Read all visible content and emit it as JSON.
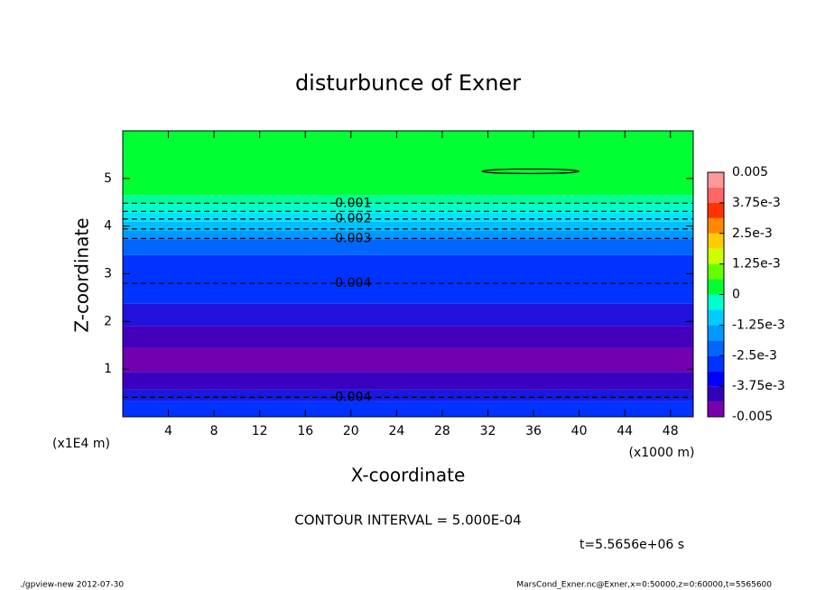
{
  "chart_data": {
    "type": "contour",
    "title": "disturbunce of Exner",
    "x_label": "X-coordinate",
    "y_label": "Z-coordinate",
    "x_unit": "(x1000 m)",
    "y_unit": "(x1E4 m)",
    "xlim": [
      0,
      50
    ],
    "ylim": [
      0,
      6
    ],
    "xticks": [
      4,
      8,
      12,
      16,
      20,
      24,
      28,
      32,
      36,
      40,
      44,
      48
    ],
    "yticks": [
      1,
      2,
      3,
      4,
      5
    ],
    "bands": [
      {
        "z": [
          4.65,
          6
        ],
        "color": "#00ff33"
      },
      {
        "z": [
          4.46,
          4.65
        ],
        "color": "#00ff99"
      },
      {
        "z": [
          4.28,
          4.46
        ],
        "color": "#00ffcc"
      },
      {
        "z": [
          4.09,
          4.28
        ],
        "color": "#00e5ff"
      },
      {
        "z": [
          3.9,
          4.09
        ],
        "color": "#00bfff"
      },
      {
        "z": [
          3.72,
          3.9
        ],
        "color": "#0099ff"
      },
      {
        "z": [
          3.39,
          3.72
        ],
        "color": "#0066ff"
      },
      {
        "z": [
          2.37,
          3.39
        ],
        "color": "#0033ff"
      },
      {
        "z": [
          1.9,
          2.37
        ],
        "color": "#2211dd"
      },
      {
        "z": [
          1.44,
          1.9
        ],
        "color": "#4400bb"
      },
      {
        "z": [
          0.94,
          1.44
        ],
        "color": "#7000b0"
      },
      {
        "z": [
          0.57,
          0.94
        ],
        "color": "#3a00c0"
      },
      {
        "z": [
          0.33,
          0.57
        ],
        "color": "#1a1add"
      },
      {
        "z": [
          0,
          0.33
        ],
        "color": "#0033ff"
      }
    ],
    "contour_lines": [
      4.48,
      4.31,
      4.15,
      3.94,
      3.74,
      2.8,
      0.41
    ],
    "contour_labels": [
      {
        "level": -0.001,
        "x": 20,
        "z": 4.48
      },
      {
        "level": -0.002,
        "x": 20,
        "z": 4.15
      },
      {
        "level": -0.003,
        "x": 20,
        "z": 3.74
      },
      {
        "level": -0.004,
        "x": 20,
        "z": 2.8
      },
      {
        "level": -0.004,
        "x": 20,
        "z": 0.41
      }
    ],
    "closed_contours": [
      {
        "x0": 31.5,
        "x1": 40,
        "z": 5.15
      }
    ],
    "colorbar": {
      "lim": [
        -0.005,
        0.005
      ],
      "ticks": [
        {
          "value": 0.005,
          "label": "0.005"
        },
        {
          "value": 0.00375,
          "label": "3.75e-3"
        },
        {
          "value": 0.0025,
          "label": "2.5e-3"
        },
        {
          "value": 0.00125,
          "label": "1.25e-3"
        },
        0,
        {
          "value": -0.00125,
          "label": "-1.25e-3"
        },
        {
          "value": -0.0025,
          "label": "-2.5e-3"
        },
        {
          "value": -0.00375,
          "label": "-3.75e-3"
        },
        {
          "value": -0.005,
          "label": "-0.005"
        }
      ],
      "colors": [
        "#7700aa",
        "#3300bb",
        "#0000ff",
        "#0033ff",
        "#0066ff",
        "#0099ff",
        "#00ccff",
        "#00ffcc",
        "#00ff33",
        "#66ff00",
        "#ccff00",
        "#ffcc00",
        "#ff8800",
        "#ff3300",
        "#ff6666",
        "#ff9999"
      ]
    },
    "contour_interval": "CONTOUR INTERVAL = 5.000E-04",
    "time_label": "t=5.5656e+06 s",
    "footer_left": "./gpview-new  2012-07-30",
    "footer_right": "MarsCond_Exner.nc@Exner,x=0:50000,z=0:60000,t=5565600"
  }
}
